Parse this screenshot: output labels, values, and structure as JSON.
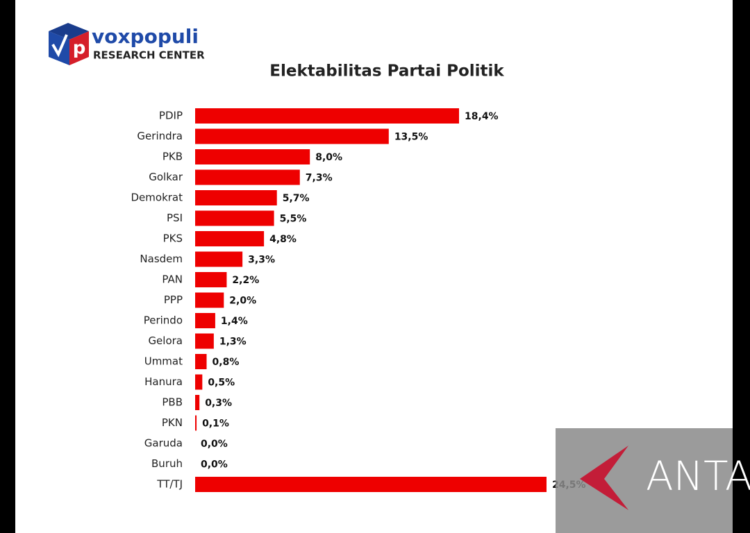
{
  "logo": {
    "name": "voxpopuli",
    "subtitle": "RESEARCH CENTER"
  },
  "watermark": "ANTA",
  "chart_data": {
    "type": "hbar",
    "title": "Elektabilitas Partai Politik",
    "categories": [
      "PDIP",
      "Gerindra",
      "PKB",
      "Golkar",
      "Demokrat",
      "PSI",
      "PKS",
      "Nasdem",
      "PAN",
      "PPP",
      "Perindo",
      "Gelora",
      "Ummat",
      "Hanura",
      "PBB",
      "PKN",
      "Garuda",
      "Buruh",
      "TT/TJ"
    ],
    "values": [
      18.4,
      13.5,
      8.0,
      7.3,
      5.7,
      5.5,
      4.8,
      3.3,
      2.2,
      2.0,
      1.4,
      1.3,
      0.8,
      0.5,
      0.3,
      0.1,
      0.0,
      0.0,
      24.5
    ],
    "value_labels": [
      "18,4%",
      "13,5%",
      "8,0%",
      "7,3%",
      "5,7%",
      "5,5%",
      "4,8%",
      "3,3%",
      "2,2%",
      "2,0%",
      "1,4%",
      "1,3%",
      "0,8%",
      "0,5%",
      "0,3%",
      "0,1%",
      "0,0%",
      "0,0%",
      "24,5%"
    ],
    "color": "#ee0000"
  }
}
